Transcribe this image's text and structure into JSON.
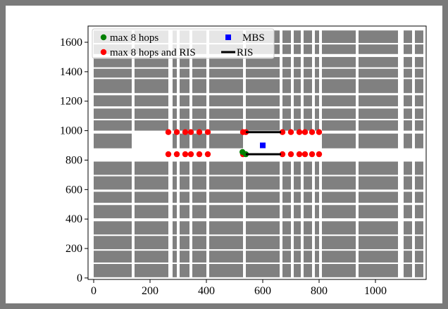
{
  "chart_data": {
    "type": "scatter",
    "title": "",
    "xlabel": "",
    "ylabel": "",
    "xlim": [
      -20,
      1180
    ],
    "ylim": [
      -10,
      1710
    ],
    "xticks": [
      0,
      200,
      400,
      600,
      800,
      1000
    ],
    "yticks": [
      0,
      200,
      400,
      600,
      800,
      1000,
      1200,
      1400,
      1600
    ],
    "xtick_labels": [
      "0",
      "200",
      "400",
      "600",
      "800",
      "1000"
    ],
    "ytick_labels": [
      "0",
      "200",
      "400",
      "600",
      "800",
      "1000",
      "1200",
      "1400",
      "1600"
    ],
    "legend": {
      "placement": "top-left",
      "entries": [
        {
          "label": "max 8 hops",
          "marker": "circle",
          "color": "#008000"
        },
        {
          "label": "MBS",
          "marker": "square",
          "color": "#0000ff"
        },
        {
          "label": "max 8 hops and RIS",
          "marker": "circle",
          "color": "#ff0000"
        },
        {
          "label": "RIS",
          "marker": "line",
          "color": "#000000"
        }
      ]
    },
    "background": {
      "building_color": "#808080",
      "street_color": "#ffffff",
      "column_ranges": [
        [
          0,
          135
        ],
        [
          145,
          265
        ],
        [
          280,
          295
        ],
        [
          305,
          340
        ],
        [
          350,
          400
        ],
        [
          410,
          530
        ],
        [
          540,
          660
        ],
        [
          670,
          700
        ],
        [
          710,
          735
        ],
        [
          745,
          775
        ],
        [
          785,
          800
        ],
        [
          810,
          930
        ],
        [
          940,
          1080
        ],
        [
          1100,
          1130
        ],
        [
          1140,
          1170
        ]
      ],
      "row_ranges": [
        [
          5,
          95
        ],
        [
          105,
          185
        ],
        [
          195,
          285
        ],
        [
          295,
          385
        ],
        [
          405,
          495
        ],
        [
          510,
          585
        ],
        [
          600,
          690
        ],
        [
          700,
          790
        ],
        [
          880,
          980
        ],
        [
          1000,
          1070
        ],
        [
          1080,
          1150
        ],
        [
          1165,
          1240
        ],
        [
          1255,
          1350
        ],
        [
          1360,
          1420
        ],
        [
          1430,
          1500
        ],
        [
          1520,
          1585
        ],
        [
          1595,
          1680
        ]
      ],
      "cleared_boxes": [
        [
          138,
          270,
          795,
          1015
        ],
        [
          530,
          690,
          795,
          1015
        ],
        [
          660,
          822,
          795,
          1015
        ]
      ]
    },
    "series": [
      {
        "name": "max 8 hops and RIS",
        "marker": "circle",
        "color": "#ff0000",
        "x": [
          265,
          295,
          325,
          345,
          375,
          405,
          265,
          295,
          325,
          345,
          375,
          405,
          530,
          540,
          670,
          700,
          730,
          750,
          775,
          800,
          530,
          670,
          700,
          730,
          750,
          775,
          800
        ],
        "y": [
          990,
          990,
          990,
          990,
          990,
          990,
          840,
          840,
          840,
          840,
          840,
          840,
          990,
          990,
          990,
          990,
          990,
          990,
          990,
          990,
          840,
          840,
          840,
          840,
          840,
          840,
          840
        ]
      },
      {
        "name": "max 8 hops",
        "marker": "circle",
        "color": "#008000",
        "x": [
          528,
          540
        ],
        "y": [
          855,
          840
        ]
      },
      {
        "name": "MBS",
        "marker": "square",
        "color": "#0000ff",
        "x": [
          600
        ],
        "y": [
          900
        ]
      },
      {
        "name": "RIS",
        "marker": "line",
        "color": "#000000",
        "segments": [
          {
            "x": [
              540,
              665
            ],
            "y": [
              990,
              990
            ]
          },
          {
            "x": [
              540,
              665
            ],
            "y": [
              840,
              840
            ]
          }
        ]
      }
    ]
  }
}
